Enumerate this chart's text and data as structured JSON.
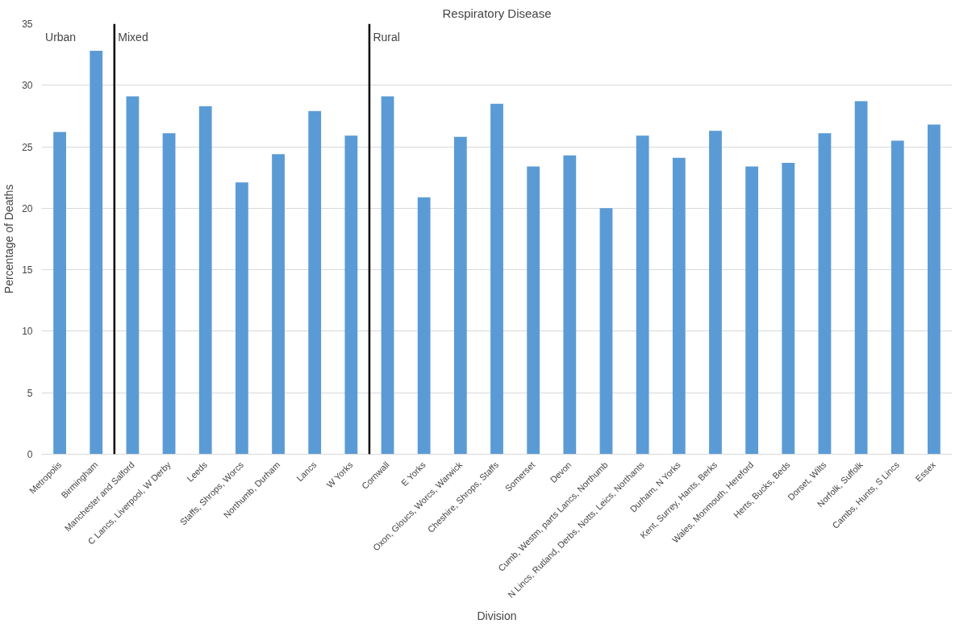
{
  "chart_data": {
    "type": "bar",
    "title": "Respiratory Disease",
    "xlabel": "Division",
    "ylabel": "Percentage of Deaths",
    "categories": [
      "Metropolis",
      "Birmingham",
      "Manchester and Salford",
      "C Lancs, Liverpool, W Derby",
      "Leeds",
      "Staffs, Shrops, Worcs",
      "Northumb, Durham",
      "Lancs",
      "W Yorks",
      "Cornwall",
      "E Yorks",
      "Oxon, Gloucs, Worcs, Warwick",
      "Cheshire, Shrops, Staffs",
      "Somerset",
      "Devon",
      "Cumb, Westm, parts Lancs, Northumb",
      "N Lincs, Rutland, Derbs, Notts, Leics, Northants",
      "Durham, N Yorks",
      "Kent, Surrey, Hants, Berks",
      "Wales, Monmouth, Hereford",
      "Herts, Bucks, Beds",
      "Dorset, Wilts",
      "Norfolk, Suffolk",
      "Cambs, Hunts, S Lincs",
      "Essex"
    ],
    "values": [
      26.2,
      32.8,
      29.1,
      26.1,
      28.3,
      22.1,
      24.4,
      27.9,
      25.9,
      29.1,
      20.9,
      25.8,
      28.5,
      23.4,
      24.3,
      20.0,
      25.9,
      24.1,
      26.3,
      23.4,
      23.7,
      26.1,
      28.7,
      25.5,
      26.8
    ],
    "color": "#5b9bd5",
    "ylim": [
      0,
      35
    ],
    "yticks": [
      0,
      5,
      10,
      15,
      20,
      25,
      30,
      35
    ],
    "grid": "y",
    "annotations": [
      "Urban",
      "Mixed",
      "Rural"
    ]
  }
}
